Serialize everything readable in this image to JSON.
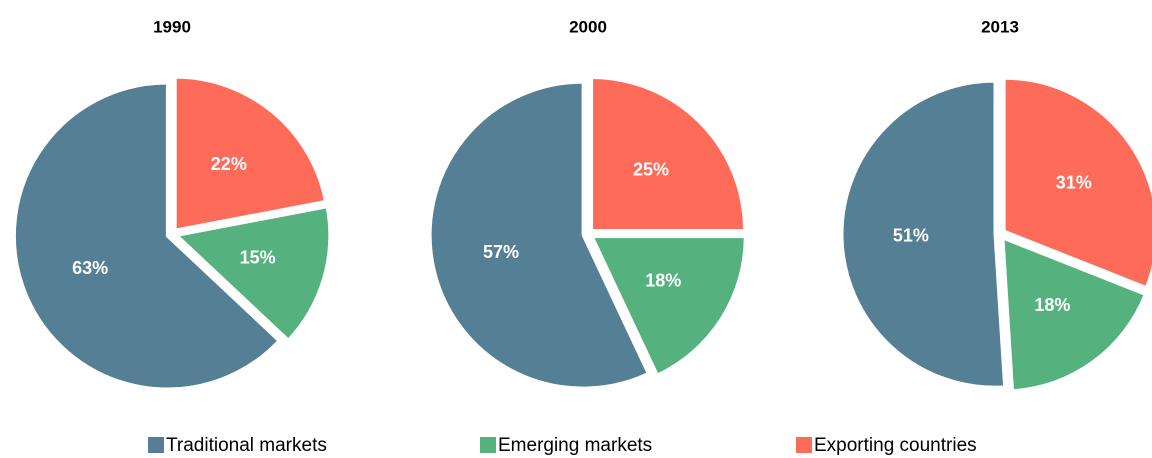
{
  "chart_data": [
    {
      "type": "pie",
      "title": "1990",
      "values": [
        63,
        15,
        22
      ],
      "value_labels": [
        "63%",
        "15%",
        "22%"
      ]
    },
    {
      "type": "pie",
      "title": "2000",
      "values": [
        57,
        18,
        25
      ],
      "value_labels": [
        "57%",
        "18%",
        "25%"
      ]
    },
    {
      "type": "pie",
      "title": "2013",
      "values": [
        51,
        18,
        31
      ],
      "value_labels": [
        "51%",
        "18%",
        "31%"
      ]
    }
  ],
  "legend": {
    "categories": [
      "Traditional markets",
      "Emerging markets",
      "Exporting countries"
    ],
    "colors": [
      "#557f95",
      "#55b27e",
      "#fe6b58"
    ]
  }
}
